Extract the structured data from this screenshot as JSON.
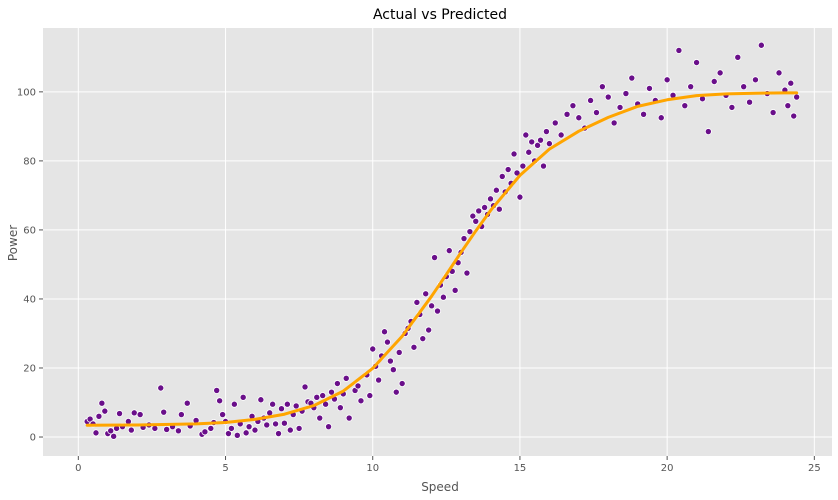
{
  "chart_data": {
    "type": "scatter",
    "title": "Actual vs Predicted",
    "xlabel": "Speed",
    "ylabel": "Power",
    "xlim": [
      -1.2,
      25.6
    ],
    "ylim": [
      -5.5,
      118.5
    ],
    "xticks": [
      0,
      5,
      10,
      15,
      20,
      25
    ],
    "yticks": [
      0,
      20,
      40,
      60,
      80,
      100
    ],
    "grid": true,
    "background_color": "#e5e5e5",
    "grid_color": "#ffffff",
    "series": [
      {
        "kind": "scatter",
        "color": "#6a0f8a",
        "edge_color": "#ffffff",
        "points": [
          [
            0.3,
            4.5
          ],
          [
            0.4,
            5.2
          ],
          [
            0.5,
            3.8
          ],
          [
            0.6,
            1.2
          ],
          [
            0.7,
            6.0
          ],
          [
            0.8,
            9.8
          ],
          [
            0.9,
            7.5
          ],
          [
            1.0,
            1.0
          ],
          [
            1.1,
            1.8
          ],
          [
            1.2,
            0.2
          ],
          [
            1.3,
            2.5
          ],
          [
            1.4,
            6.8
          ],
          [
            1.5,
            3.0
          ],
          [
            1.7,
            4.5
          ],
          [
            1.8,
            2.0
          ],
          [
            1.9,
            7.0
          ],
          [
            2.1,
            6.5
          ],
          [
            2.2,
            2.8
          ],
          [
            2.4,
            3.5
          ],
          [
            2.6,
            2.5
          ],
          [
            2.8,
            14.2
          ],
          [
            2.9,
            7.2
          ],
          [
            3.0,
            2.2
          ],
          [
            3.2,
            3.0
          ],
          [
            3.4,
            1.8
          ],
          [
            3.5,
            6.5
          ],
          [
            3.7,
            9.8
          ],
          [
            3.8,
            3.2
          ],
          [
            4.0,
            4.8
          ],
          [
            4.2,
            0.8
          ],
          [
            4.3,
            1.5
          ],
          [
            4.5,
            2.5
          ],
          [
            4.6,
            4.2
          ],
          [
            4.7,
            13.5
          ],
          [
            4.8,
            10.5
          ],
          [
            4.9,
            6.5
          ],
          [
            5.0,
            4.5
          ],
          [
            5.1,
            1.0
          ],
          [
            5.2,
            2.5
          ],
          [
            5.3,
            9.5
          ],
          [
            5.4,
            0.5
          ],
          [
            5.5,
            3.8
          ],
          [
            5.6,
            11.5
          ],
          [
            5.7,
            1.2
          ],
          [
            5.8,
            3.0
          ],
          [
            5.9,
            6.0
          ],
          [
            6.0,
            2.0
          ],
          [
            6.1,
            4.5
          ],
          [
            6.2,
            10.8
          ],
          [
            6.3,
            5.5
          ],
          [
            6.4,
            3.5
          ],
          [
            6.5,
            7.0
          ],
          [
            6.6,
            9.5
          ],
          [
            6.7,
            3.8
          ],
          [
            6.8,
            1.0
          ],
          [
            6.9,
            8.2
          ],
          [
            7.0,
            4.0
          ],
          [
            7.1,
            9.5
          ],
          [
            7.2,
            2.0
          ],
          [
            7.3,
            6.5
          ],
          [
            7.4,
            9.0
          ],
          [
            7.5,
            2.5
          ],
          [
            7.6,
            7.5
          ],
          [
            7.7,
            14.5
          ],
          [
            7.8,
            10.2
          ],
          [
            7.9,
            9.8
          ],
          [
            8.0,
            8.5
          ],
          [
            8.1,
            11.5
          ],
          [
            8.2,
            5.5
          ],
          [
            8.3,
            12.0
          ],
          [
            8.4,
            9.5
          ],
          [
            8.5,
            3.0
          ],
          [
            8.6,
            13.0
          ],
          [
            8.7,
            11.0
          ],
          [
            8.8,
            15.5
          ],
          [
            8.9,
            8.5
          ],
          [
            9.0,
            12.5
          ],
          [
            9.1,
            17.0
          ],
          [
            9.2,
            5.5
          ],
          [
            9.4,
            13.5
          ],
          [
            9.5,
            14.8
          ],
          [
            9.6,
            10.5
          ],
          [
            9.8,
            18.0
          ],
          [
            9.9,
            12.0
          ],
          [
            10.0,
            25.5
          ],
          [
            10.1,
            20.5
          ],
          [
            10.2,
            16.5
          ],
          [
            10.3,
            23.5
          ],
          [
            10.4,
            30.5
          ],
          [
            10.5,
            27.5
          ],
          [
            10.6,
            22.0
          ],
          [
            10.7,
            19.5
          ],
          [
            10.8,
            13.0
          ],
          [
            10.9,
            24.5
          ],
          [
            11.0,
            15.5
          ],
          [
            11.1,
            30.0
          ],
          [
            11.2,
            31.5
          ],
          [
            11.3,
            33.5
          ],
          [
            11.4,
            26.0
          ],
          [
            11.5,
            39.0
          ],
          [
            11.6,
            35.5
          ],
          [
            11.7,
            28.5
          ],
          [
            11.8,
            41.5
          ],
          [
            11.9,
            31.0
          ],
          [
            12.0,
            38.0
          ],
          [
            12.1,
            52.0
          ],
          [
            12.2,
            36.5
          ],
          [
            12.3,
            44.0
          ],
          [
            12.4,
            40.5
          ],
          [
            12.5,
            46.5
          ],
          [
            12.6,
            54.0
          ],
          [
            12.7,
            48.0
          ],
          [
            12.8,
            42.5
          ],
          [
            12.9,
            50.5
          ],
          [
            13.0,
            53.5
          ],
          [
            13.1,
            57.5
          ],
          [
            13.2,
            47.5
          ],
          [
            13.3,
            59.5
          ],
          [
            13.4,
            64.0
          ],
          [
            13.5,
            62.5
          ],
          [
            13.6,
            65.5
          ],
          [
            13.7,
            61.0
          ],
          [
            13.8,
            66.5
          ],
          [
            13.9,
            64.5
          ],
          [
            14.0,
            69.0
          ],
          [
            14.1,
            67.0
          ],
          [
            14.2,
            71.5
          ],
          [
            14.3,
            66.0
          ],
          [
            14.4,
            75.5
          ],
          [
            14.5,
            71.0
          ],
          [
            14.6,
            77.5
          ],
          [
            14.7,
            73.5
          ],
          [
            14.8,
            82.0
          ],
          [
            14.9,
            76.5
          ],
          [
            15.0,
            69.5
          ],
          [
            15.1,
            78.5
          ],
          [
            15.2,
            87.5
          ],
          [
            15.3,
            82.5
          ],
          [
            15.4,
            85.5
          ],
          [
            15.5,
            80.0
          ],
          [
            15.6,
            84.5
          ],
          [
            15.7,
            86.0
          ],
          [
            15.8,
            78.5
          ],
          [
            15.9,
            88.5
          ],
          [
            16.0,
            85.0
          ],
          [
            16.2,
            91.0
          ],
          [
            16.4,
            87.5
          ],
          [
            16.6,
            93.5
          ],
          [
            16.8,
            96.0
          ],
          [
            17.0,
            92.5
          ],
          [
            17.2,
            89.5
          ],
          [
            17.4,
            97.5
          ],
          [
            17.6,
            94.0
          ],
          [
            17.8,
            101.5
          ],
          [
            18.0,
            98.5
          ],
          [
            18.2,
            91.0
          ],
          [
            18.4,
            95.5
          ],
          [
            18.6,
            99.5
          ],
          [
            18.8,
            104.0
          ],
          [
            19.0,
            96.5
          ],
          [
            19.2,
            93.5
          ],
          [
            19.4,
            101.0
          ],
          [
            19.6,
            97.5
          ],
          [
            19.8,
            92.5
          ],
          [
            20.0,
            103.5
          ],
          [
            20.2,
            99.0
          ],
          [
            20.4,
            112.0
          ],
          [
            20.6,
            96.0
          ],
          [
            20.8,
            101.5
          ],
          [
            21.0,
            108.5
          ],
          [
            21.2,
            98.0
          ],
          [
            21.4,
            88.5
          ],
          [
            21.6,
            103.0
          ],
          [
            21.8,
            105.5
          ],
          [
            22.0,
            99.0
          ],
          [
            22.2,
            95.5
          ],
          [
            22.4,
            110.0
          ],
          [
            22.6,
            101.5
          ],
          [
            22.8,
            97.0
          ],
          [
            23.0,
            103.5
          ],
          [
            23.2,
            113.5
          ],
          [
            23.4,
            99.5
          ],
          [
            23.6,
            94.0
          ],
          [
            23.8,
            105.5
          ],
          [
            24.0,
            100.5
          ],
          [
            24.1,
            96.0
          ],
          [
            24.2,
            102.5
          ],
          [
            24.3,
            93.0
          ],
          [
            24.4,
            98.5
          ]
        ]
      },
      {
        "kind": "line",
        "color": "#ffa500",
        "points": [
          [
            0.3,
            3.4
          ],
          [
            2,
            3.5
          ],
          [
            4,
            3.8
          ],
          [
            5,
            4.2
          ],
          [
            6,
            5.1
          ],
          [
            7,
            6.6
          ],
          [
            8,
            9.1
          ],
          [
            9,
            13.3
          ],
          [
            10,
            19.9
          ],
          [
            11,
            29.2
          ],
          [
            12,
            40.8
          ],
          [
            12.5,
            47.1
          ],
          [
            13,
            53.5
          ],
          [
            13.5,
            59.7
          ],
          [
            14,
            65.6
          ],
          [
            15,
            75.8
          ],
          [
            16,
            83.4
          ],
          [
            17,
            88.6
          ],
          [
            18,
            92.6
          ],
          [
            19,
            95.8
          ],
          [
            20,
            97.7
          ],
          [
            21,
            98.9
          ],
          [
            22,
            99.4
          ],
          [
            23,
            99.6
          ],
          [
            24,
            99.7
          ],
          [
            24.4,
            99.7
          ]
        ]
      }
    ]
  }
}
